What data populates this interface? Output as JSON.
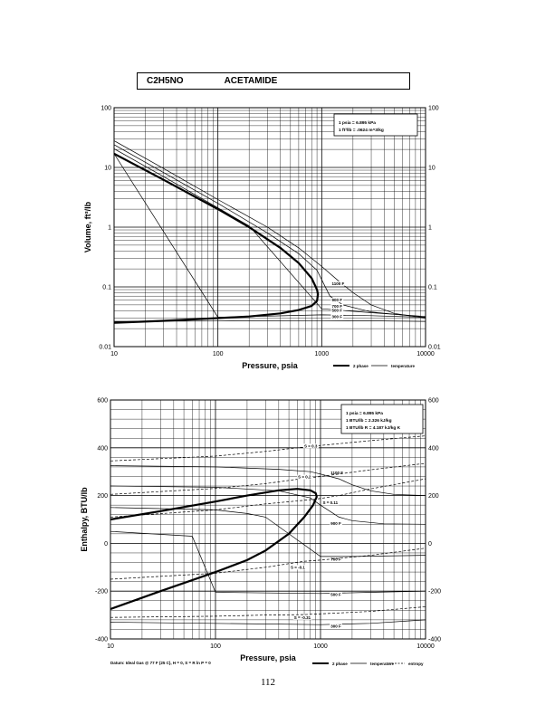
{
  "header": {
    "formula": "C2H5NO",
    "name": "ACETAMIDE"
  },
  "page_number": "112",
  "chart_data": [
    {
      "type": "line",
      "xlabel": "Pressure,  psia",
      "ylabel": "Volume,  ft^3/lb",
      "x_scale": "log",
      "y_scale": "log",
      "xlim": [
        10,
        10000
      ],
      "ylim": [
        0.01,
        100
      ],
      "grid": true,
      "x_ticks": [
        "10",
        "100",
        "1000",
        "10000"
      ],
      "y_ticks": [
        "0.01",
        "0.1",
        "1",
        "10",
        "100"
      ],
      "y_ticks_right": [
        "0.01",
        "0.1",
        "1",
        "10",
        "100"
      ],
      "legend": {
        "placement": "bottom-right",
        "entries": [
          "2 phase",
          "temperature"
        ]
      },
      "note_lines": [
        "1 psia  =  6.895 kPa",
        "1 ft^3/lb  =  .0624 m^3/kg"
      ],
      "series": [
        {
          "name": "2 phase",
          "style": "bold",
          "points": [
            [
              10,
              17
            ],
            [
              30,
              6.2
            ],
            [
              100,
              2.0
            ],
            [
              200,
              1.0
            ],
            [
              400,
              0.45
            ],
            [
              600,
              0.25
            ],
            [
              800,
              0.14
            ],
            [
              900,
              0.09
            ],
            [
              920,
              0.075
            ],
            [
              900,
              0.058
            ],
            [
              800,
              0.048
            ],
            [
              600,
              0.041
            ],
            [
              400,
              0.036
            ],
            [
              200,
              0.032
            ],
            [
              100,
              0.03
            ],
            [
              30,
              0.027
            ],
            [
              10,
              0.025
            ]
          ]
        },
        {
          "label": "1100 F",
          "style": "thin",
          "points": [
            [
              10,
              28
            ],
            [
              30,
              9.6
            ],
            [
              100,
              2.9
            ],
            [
              300,
              1.0
            ],
            [
              600,
              0.45
            ],
            [
              1000,
              0.22
            ],
            [
              1500,
              0.12
            ],
            [
              2000,
              0.08
            ],
            [
              3000,
              0.05
            ],
            [
              5000,
              0.036
            ],
            [
              10000,
              0.03
            ]
          ]
        },
        {
          "label": "900 F",
          "style": "thin",
          "points": [
            [
              10,
              24
            ],
            [
              30,
              8.2
            ],
            [
              100,
              2.5
            ],
            [
              300,
              0.8
            ],
            [
              600,
              0.36
            ],
            [
              900,
              0.19
            ],
            [
              1200,
              0.07
            ],
            [
              1600,
              0.05
            ],
            [
              3000,
              0.038
            ],
            [
              10000,
              0.031
            ]
          ]
        },
        {
          "label": "700 F",
          "style": "thin",
          "points": [
            [
              10,
              20.5
            ],
            [
              30,
              7.0
            ],
            [
              100,
              2.1
            ],
            [
              200,
              1.05
            ],
            [
              1000,
              0.043
            ],
            [
              3000,
              0.037
            ],
            [
              10000,
              0.032
            ]
          ]
        },
        {
          "label": "500 F",
          "style": "thin",
          "points": [
            [
              10,
              17
            ],
            [
              100,
              0.031
            ],
            [
              1000,
              0.034
            ],
            [
              3000,
              0.033
            ],
            [
              10000,
              0.031
            ]
          ]
        },
        {
          "label": "300 F",
          "style": "thin",
          "points": [
            [
              10,
              0.0265
            ],
            [
              100,
              0.0268
            ],
            [
              1000,
              0.0272
            ],
            [
              3000,
              0.027
            ],
            [
              10000,
              0.0265
            ]
          ]
        }
      ]
    },
    {
      "type": "line",
      "xlabel": "Pressure,  psia",
      "ylabel": "Enthalpy,  BTU/lb",
      "x_scale": "log",
      "y_scale": "linear",
      "xlim": [
        10,
        10000
      ],
      "ylim": [
        -400,
        600
      ],
      "grid": true,
      "x_ticks": [
        "10",
        "100",
        "1000",
        "10000"
      ],
      "y_ticks": [
        "-400",
        "-200",
        "0",
        "200",
        "400",
        "600"
      ],
      "y_ticks_right": [
        "-400",
        "-200",
        "0",
        "200",
        "400",
        "600"
      ],
      "legend": {
        "placement": "bottom-right",
        "entries": [
          "2 phase",
          "temperature",
          "entropy"
        ]
      },
      "note_lines": [
        "1 psia  =  6.895 kPa",
        "1 BTU/lb  =  2.326 kJ/kg",
        "1 BTU/lb R  =  4.187 kJ/kg K"
      ],
      "datum": "Datum: Ideal Gas @ 77 F (25 C),  H = 0,  S = R ln P = 0",
      "series": [
        {
          "name": "2 phase",
          "style": "bold",
          "points": [
            [
              10,
              -275
            ],
            [
              30,
              -200
            ],
            [
              100,
              -120
            ],
            [
              200,
              -70
            ],
            [
              300,
              -30
            ],
            [
              500,
              40
            ],
            [
              700,
              110
            ],
            [
              850,
              160
            ],
            [
              920,
              195
            ],
            [
              900,
              210
            ],
            [
              800,
              222
            ],
            [
              600,
              228
            ],
            [
              400,
              222
            ],
            [
              200,
              200
            ],
            [
              100,
              175
            ],
            [
              30,
              135
            ],
            [
              10,
              100
            ]
          ]
        },
        {
          "label": "1100 F",
          "style": "thin",
          "points": [
            [
              10,
              325
            ],
            [
              100,
              320
            ],
            [
              400,
              310
            ],
            [
              800,
              300
            ],
            [
              1000,
              290
            ],
            [
              1500,
              270
            ],
            [
              2000,
              245
            ],
            [
              3000,
              220
            ],
            [
              5000,
              205
            ],
            [
              10000,
              200
            ]
          ]
        },
        {
          "label": "900 F",
          "style": "thin",
          "points": [
            [
              10,
              240
            ],
            [
              100,
              235
            ],
            [
              400,
              220
            ],
            [
              800,
              190
            ],
            [
              1000,
              160
            ],
            [
              1500,
              110
            ],
            [
              2000,
              95
            ],
            [
              4000,
              82
            ],
            [
              10000,
              80
            ]
          ]
        },
        {
          "label": "700 F",
          "style": "thin",
          "points": [
            [
              10,
              150
            ],
            [
              100,
              140
            ],
            [
              200,
              125
            ],
            [
              300,
              110
            ],
            [
              1000,
              -55
            ],
            [
              2000,
              -55
            ],
            [
              10000,
              -50
            ]
          ]
        },
        {
          "label": "500 F",
          "style": "thin",
          "points": [
            [
              10,
              50
            ],
            [
              60,
              30
            ],
            [
              100,
              -205
            ],
            [
              1000,
              -210
            ],
            [
              3000,
              -205
            ],
            [
              10000,
              -200
            ]
          ]
        },
        {
          "label": "300 F",
          "style": "thin",
          "points": [
            [
              10,
              -330
            ],
            [
              1000,
              -340
            ],
            [
              3000,
              -335
            ],
            [
              10000,
              -320
            ]
          ]
        },
        {
          "label": "S = 0.3",
          "style": "dashed",
          "points": [
            [
              10,
              345
            ],
            [
              100,
              365
            ],
            [
              300,
              385
            ],
            [
              600,
              400
            ],
            [
              1000,
              410
            ],
            [
              3000,
              430
            ],
            [
              10000,
              450
            ]
          ]
        },
        {
          "label": "S = 0.2",
          "style": "dashed",
          "points": [
            [
              10,
              205
            ],
            [
              100,
              230
            ],
            [
              300,
              250
            ],
            [
              600,
              268
            ],
            [
              1000,
              280
            ],
            [
              3000,
              308
            ],
            [
              10000,
              335
            ]
          ]
        },
        {
          "label": "S = 0.11",
          "style": "dashed",
          "points": [
            [
              10,
              110
            ],
            [
              100,
              140
            ],
            [
              300,
              165
            ],
            [
              900,
              185
            ],
            [
              1500,
              200
            ],
            [
              3000,
              228
            ],
            [
              10000,
              270
            ]
          ]
        },
        {
          "label": "S = -0.1",
          "style": "dashed",
          "points": [
            [
              10,
              -150
            ],
            [
              100,
              -125
            ],
            [
              300,
              -100
            ],
            [
              700,
              -75
            ],
            [
              1000,
              -70
            ],
            [
              3000,
              -50
            ],
            [
              10000,
              -20
            ]
          ]
        },
        {
          "label": "S = -0.31",
          "style": "dashed",
          "points": [
            [
              10,
              -310
            ],
            [
              100,
              -305
            ],
            [
              300,
              -300
            ],
            [
              700,
              -298
            ],
            [
              1000,
              -295
            ],
            [
              3000,
              -285
            ],
            [
              10000,
              -265
            ]
          ]
        }
      ]
    }
  ]
}
